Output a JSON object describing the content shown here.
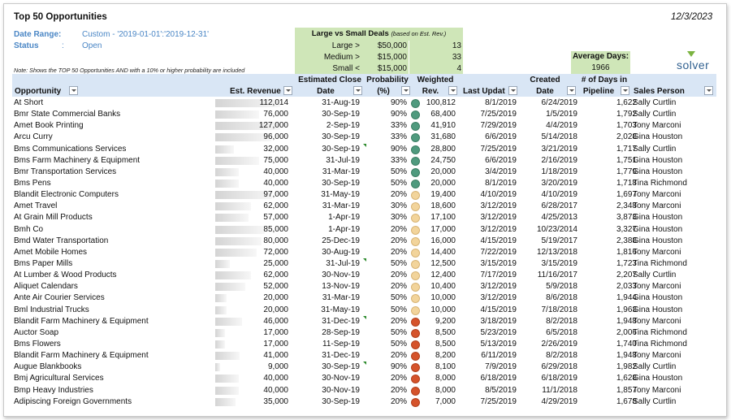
{
  "report": {
    "title": "Top 50 Opportunities",
    "date": "12/3/2023",
    "date_range_label": "Date Range:",
    "date_range_value": "Custom - '2019-01-01':'2019-12-31'",
    "status_label": "Status",
    "status_sep": ":",
    "status_value": "Open",
    "note": "Note: Shows the TOP 50 Opportunities AND with a 10% or higher probability are included"
  },
  "summary": {
    "title": "Large vs Small Deals",
    "subtitle": "(based on Est. Rev.)",
    "rows": [
      {
        "label": "Large >",
        "threshold": "$50,000",
        "count": "13"
      },
      {
        "label": "Medium >",
        "threshold": "$15,000",
        "count": "33"
      },
      {
        "label": "Small <",
        "threshold": "$15,000",
        "count": "4"
      }
    ]
  },
  "average_days": {
    "label": "Average Days:",
    "value": "1966"
  },
  "logo": {
    "text": "solver"
  },
  "colors": {
    "header_bg": "#d9e6f5",
    "summary_bg": "#cfe6b8",
    "meta_text": "#4a86c5",
    "dot_green": "#4f9a7e",
    "dot_yellow": "#f2d49b",
    "dot_red": "#d5532b"
  },
  "columns": {
    "opportunity": "Opportunity",
    "est_revenue": "Est. Revenue",
    "close_date_1": "Estimated Close",
    "close_date_2": "Date",
    "probability_1": "Probability",
    "probability_2": "(%)",
    "weighted_1": "Weighted",
    "weighted_2": "Rev.",
    "last_update": "Last Updat",
    "created_1": "Created",
    "created_2": "Date",
    "days_1": "# of Days in",
    "days_2": "Pipeline",
    "sales_person": "Sales Person"
  },
  "rows": [
    {
      "opportunity": "At Short",
      "est_revenue": "112,014",
      "revenue_share": 1.0,
      "close_date": "31-Aug-19",
      "probability": "90%",
      "status": "green",
      "weighted": "100,812",
      "last_update": "8/1/2019",
      "created": "6/24/2019",
      "days": "1,622",
      "sales_person": "Sally Curtlin",
      "flag": false
    },
    {
      "opportunity": "Bmr State Commercial Banks",
      "est_revenue": "76,000",
      "revenue_share": 0.68,
      "close_date": "30-Sep-19",
      "probability": "90%",
      "status": "green",
      "weighted": "68,400",
      "last_update": "7/25/2019",
      "created": "1/5/2019",
      "days": "1,792",
      "sales_person": "Sally Curtlin",
      "flag": false
    },
    {
      "opportunity": "Amet Book Printing",
      "est_revenue": "127,000",
      "revenue_share": 1.0,
      "close_date": "2-Sep-19",
      "probability": "33%",
      "status": "green",
      "weighted": "41,910",
      "last_update": "7/29/2019",
      "created": "4/4/2019",
      "days": "1,703",
      "sales_person": "Tony Marconi",
      "flag": false
    },
    {
      "opportunity": "Arcu Curry",
      "est_revenue": "96,000",
      "revenue_share": 0.86,
      "close_date": "30-Sep-19",
      "probability": "33%",
      "status": "green",
      "weighted": "31,680",
      "last_update": "6/6/2019",
      "created": "5/14/2018",
      "days": "2,028",
      "sales_person": "Gina Houston",
      "flag": false
    },
    {
      "opportunity": "Bms Communications Services",
      "est_revenue": "32,000",
      "revenue_share": 0.29,
      "close_date": "30-Sep-19",
      "probability": "90%",
      "status": "green",
      "weighted": "28,800",
      "last_update": "7/25/2019",
      "created": "3/21/2019",
      "days": "1,717",
      "sales_person": "Sally Curtlin",
      "flag": true
    },
    {
      "opportunity": "Bms Farm Machinery & Equipment",
      "est_revenue": "75,000",
      "revenue_share": 0.67,
      "close_date": "31-Jul-19",
      "probability": "33%",
      "status": "green",
      "weighted": "24,750",
      "last_update": "6/6/2019",
      "created": "2/16/2019",
      "days": "1,751",
      "sales_person": "Gina Houston",
      "flag": false
    },
    {
      "opportunity": "Bmr Transportation Services",
      "est_revenue": "40,000",
      "revenue_share": 0.36,
      "close_date": "31-Mar-19",
      "probability": "50%",
      "status": "green",
      "weighted": "20,000",
      "last_update": "3/4/2019",
      "created": "1/18/2019",
      "days": "1,779",
      "sales_person": "Gina Houston",
      "flag": false
    },
    {
      "opportunity": "Bms Pens",
      "est_revenue": "40,000",
      "revenue_share": 0.36,
      "close_date": "30-Sep-19",
      "probability": "50%",
      "status": "green",
      "weighted": "20,000",
      "last_update": "8/1/2019",
      "created": "3/20/2019",
      "days": "1,718",
      "sales_person": "Tina Richmond",
      "flag": false
    },
    {
      "opportunity": "Blandit Electronic Computers",
      "est_revenue": "97,000",
      "revenue_share": 0.87,
      "close_date": "31-May-19",
      "probability": "20%",
      "status": "yellow",
      "weighted": "19,400",
      "last_update": "4/10/2019",
      "created": "4/10/2019",
      "days": "1,697",
      "sales_person": "Tony Marconi",
      "flag": false
    },
    {
      "opportunity": "Amet Travel",
      "est_revenue": "62,000",
      "revenue_share": 0.55,
      "close_date": "31-Mar-19",
      "probability": "30%",
      "status": "yellow",
      "weighted": "18,600",
      "last_update": "3/12/2019",
      "created": "6/28/2017",
      "days": "2,348",
      "sales_person": "Tony Marconi",
      "flag": false
    },
    {
      "opportunity": "At Grain Mill Products",
      "est_revenue": "57,000",
      "revenue_share": 0.51,
      "close_date": "1-Apr-19",
      "probability": "30%",
      "status": "yellow",
      "weighted": "17,100",
      "last_update": "3/12/2019",
      "created": "4/25/2013",
      "days": "3,873",
      "sales_person": "Gina Houston",
      "flag": false
    },
    {
      "opportunity": "Bmh Co",
      "est_revenue": "85,000",
      "revenue_share": 0.76,
      "close_date": "1-Apr-19",
      "probability": "20%",
      "status": "yellow",
      "weighted": "17,000",
      "last_update": "3/12/2019",
      "created": "10/23/2014",
      "days": "3,327",
      "sales_person": "Gina Houston",
      "flag": false
    },
    {
      "opportunity": "Bmd Water Transportation",
      "est_revenue": "80,000",
      "revenue_share": 0.71,
      "close_date": "25-Dec-19",
      "probability": "20%",
      "status": "yellow",
      "weighted": "16,000",
      "last_update": "4/15/2019",
      "created": "5/19/2017",
      "days": "2,388",
      "sales_person": "Gina Houston",
      "flag": false
    },
    {
      "opportunity": "Amet Mobile Homes",
      "est_revenue": "72,000",
      "revenue_share": 0.64,
      "close_date": "30-Aug-19",
      "probability": "20%",
      "status": "yellow",
      "weighted": "14,400",
      "last_update": "7/22/2019",
      "created": "12/13/2018",
      "days": "1,816",
      "sales_person": "Tony Marconi",
      "flag": false
    },
    {
      "opportunity": "Bms Paper Mills",
      "est_revenue": "25,000",
      "revenue_share": 0.22,
      "close_date": "31-Jul-19",
      "probability": "50%",
      "status": "yellow",
      "weighted": "12,500",
      "last_update": "3/15/2019",
      "created": "3/15/2019",
      "days": "1,723",
      "sales_person": "Tina Richmond",
      "flag": true
    },
    {
      "opportunity": "At Lumber & Wood Products",
      "est_revenue": "62,000",
      "revenue_share": 0.55,
      "close_date": "30-Nov-19",
      "probability": "20%",
      "status": "yellow",
      "weighted": "12,400",
      "last_update": "7/17/2019",
      "created": "11/16/2017",
      "days": "2,207",
      "sales_person": "Sally Curtlin",
      "flag": false
    },
    {
      "opportunity": "Aliquet Calendars",
      "est_revenue": "52,000",
      "revenue_share": 0.46,
      "close_date": "13-Nov-19",
      "probability": "20%",
      "status": "yellow",
      "weighted": "10,400",
      "last_update": "3/12/2019",
      "created": "5/9/2018",
      "days": "2,033",
      "sales_person": "Tony Marconi",
      "flag": false
    },
    {
      "opportunity": "Ante Air Courier Services",
      "est_revenue": "20,000",
      "revenue_share": 0.18,
      "close_date": "31-Mar-19",
      "probability": "50%",
      "status": "yellow",
      "weighted": "10,000",
      "last_update": "3/12/2019",
      "created": "8/6/2018",
      "days": "1,944",
      "sales_person": "Gina Houston",
      "flag": false
    },
    {
      "opportunity": "Bml Industrial Trucks",
      "est_revenue": "20,000",
      "revenue_share": 0.18,
      "close_date": "31-May-19",
      "probability": "50%",
      "status": "yellow",
      "weighted": "10,000",
      "last_update": "4/15/2019",
      "created": "7/18/2018",
      "days": "1,963",
      "sales_person": "Gina Houston",
      "flag": false
    },
    {
      "opportunity": "Blandit Farm Machinery & Equipment",
      "est_revenue": "46,000",
      "revenue_share": 0.41,
      "close_date": "31-Dec-19",
      "probability": "20%",
      "status": "red",
      "weighted": "9,200",
      "last_update": "3/18/2019",
      "created": "8/2/2018",
      "days": "1,948",
      "sales_person": "Tony Marconi",
      "flag": true
    },
    {
      "opportunity": "Auctor Soap",
      "est_revenue": "17,000",
      "revenue_share": 0.15,
      "close_date": "28-Sep-19",
      "probability": "50%",
      "status": "red",
      "weighted": "8,500",
      "last_update": "5/23/2019",
      "created": "6/5/2018",
      "days": "2,006",
      "sales_person": "Tina Richmond",
      "flag": false
    },
    {
      "opportunity": "Bms Flowers",
      "est_revenue": "17,000",
      "revenue_share": 0.15,
      "close_date": "11-Sep-19",
      "probability": "50%",
      "status": "red",
      "weighted": "8,500",
      "last_update": "5/13/2019",
      "created": "2/26/2019",
      "days": "1,740",
      "sales_person": "Tina Richmond",
      "flag": false
    },
    {
      "opportunity": "Blandit Farm Machinery & Equipment",
      "est_revenue": "41,000",
      "revenue_share": 0.37,
      "close_date": "31-Dec-19",
      "probability": "20%",
      "status": "red",
      "weighted": "8,200",
      "last_update": "6/11/2019",
      "created": "8/2/2018",
      "days": "1,948",
      "sales_person": "Tony Marconi",
      "flag": false
    },
    {
      "opportunity": "Augue Blankbooks",
      "est_revenue": "9,000",
      "revenue_share": 0.08,
      "close_date": "30-Sep-19",
      "probability": "90%",
      "status": "red",
      "weighted": "8,100",
      "last_update": "7/9/2019",
      "created": "6/29/2018",
      "days": "1,982",
      "sales_person": "Sally Curtlin",
      "flag": true
    },
    {
      "opportunity": "Bmj Agricultural Services",
      "est_revenue": "40,000",
      "revenue_share": 0.36,
      "close_date": "30-Nov-19",
      "probability": "20%",
      "status": "red",
      "weighted": "8,000",
      "last_update": "6/18/2019",
      "created": "6/18/2019",
      "days": "1,628",
      "sales_person": "Gina Houston",
      "flag": false
    },
    {
      "opportunity": "Bmp Heavy Industries",
      "est_revenue": "40,000",
      "revenue_share": 0.36,
      "close_date": "30-Nov-19",
      "probability": "20%",
      "status": "red",
      "weighted": "8,000",
      "last_update": "8/5/2019",
      "created": "11/1/2018",
      "days": "1,857",
      "sales_person": "Tony Marconi",
      "flag": false
    },
    {
      "opportunity": "Adipiscing Foreign Governments",
      "est_revenue": "35,000",
      "revenue_share": 0.31,
      "close_date": "30-Sep-19",
      "probability": "20%",
      "status": "red",
      "weighted": "7,000",
      "last_update": "7/25/2019",
      "created": "4/29/2019",
      "days": "1,678",
      "sales_person": "Sally Curtlin",
      "flag": false
    }
  ]
}
